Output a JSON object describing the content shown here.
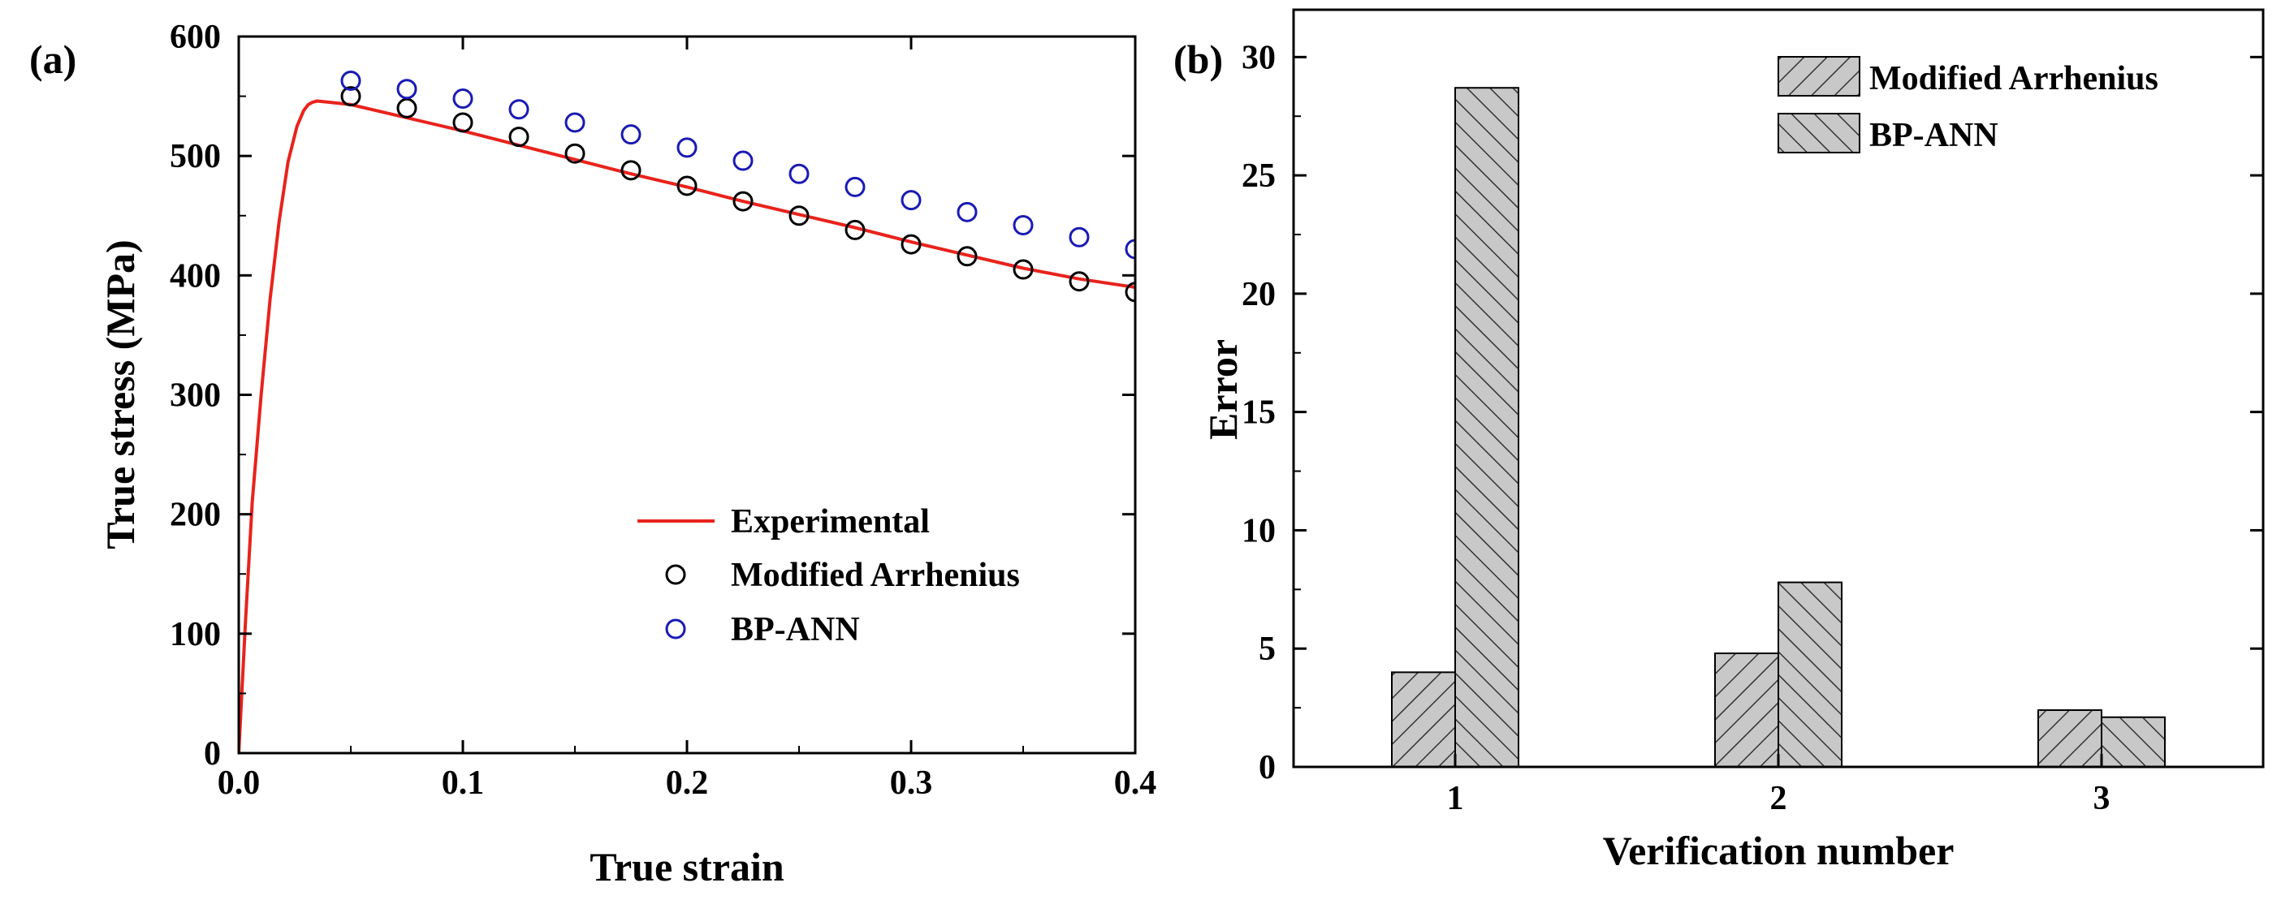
{
  "chart_data": [
    {
      "panel_label": "(a)",
      "type": "line",
      "title": "",
      "xlabel": "True strain",
      "ylabel": "True stress (MPa)",
      "xlim": [
        0.0,
        0.4
      ],
      "ylim": [
        0,
        600
      ],
      "xticks": [
        "0.0",
        "0.1",
        "0.2",
        "0.3",
        "0.4"
      ],
      "yticks": [
        "0",
        "100",
        "200",
        "300",
        "400",
        "500",
        "600"
      ],
      "legend_position": "bottom-right",
      "colors": {
        "experimental": "#e8231c",
        "modified": "#000000",
        "bpann": "#1a1ab4"
      },
      "series": [
        {
          "name": "Experimental",
          "style": "line",
          "x": [
            0.0,
            0.003,
            0.006,
            0.01,
            0.014,
            0.018,
            0.022,
            0.026,
            0.029,
            0.031,
            0.033,
            0.035,
            0.04,
            0.05,
            0.075,
            0.1,
            0.125,
            0.15,
            0.175,
            0.2,
            0.225,
            0.25,
            0.275,
            0.3,
            0.325,
            0.35,
            0.375,
            0.4
          ],
          "y": [
            0,
            110,
            210,
            300,
            380,
            445,
            495,
            525,
            538,
            543,
            545,
            546,
            545,
            543,
            532,
            521,
            509,
            497,
            485,
            474,
            462,
            451,
            440,
            428,
            417,
            406,
            397,
            390
          ]
        },
        {
          "name": "Modified Arrhenius",
          "style": "markers",
          "x": [
            0.05,
            0.075,
            0.1,
            0.125,
            0.15,
            0.175,
            0.2,
            0.225,
            0.25,
            0.275,
            0.3,
            0.325,
            0.35,
            0.375,
            0.4
          ],
          "y": [
            550,
            540,
            528,
            516,
            502,
            488,
            475,
            462,
            450,
            438,
            426,
            416,
            405,
            395,
            386
          ]
        },
        {
          "name": "BP-ANN",
          "style": "markers",
          "x": [
            0.05,
            0.075,
            0.1,
            0.125,
            0.15,
            0.175,
            0.2,
            0.225,
            0.25,
            0.275,
            0.3,
            0.325,
            0.35,
            0.375,
            0.4
          ],
          "y": [
            563,
            556,
            548,
            539,
            528,
            518,
            507,
            496,
            485,
            474,
            463,
            453,
            442,
            432,
            422
          ]
        }
      ]
    },
    {
      "panel_label": "(b)",
      "type": "bar",
      "title": "",
      "xlabel": "Verification number",
      "ylabel": "Error",
      "categories": [
        "1",
        "2",
        "3"
      ],
      "ylim": [
        0,
        32
      ],
      "yticks": [
        "0",
        "5",
        "10",
        "15",
        "20",
        "25",
        "30"
      ],
      "legend_position": "top-right",
      "colors": {
        "bar_fill": "#c8c8c8",
        "hatch": "#333333"
      },
      "series": [
        {
          "name": "Modified Arrhenius",
          "hatch": "forward",
          "values": [
            4.0,
            4.8,
            2.4
          ]
        },
        {
          "name": "BP-ANN",
          "hatch": "backward",
          "values": [
            28.7,
            7.8,
            2.1
          ]
        }
      ]
    }
  ]
}
